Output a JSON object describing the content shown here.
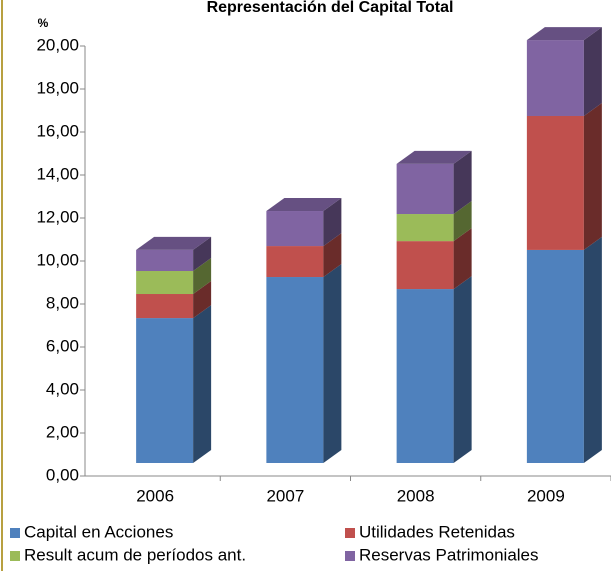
{
  "chart_data": {
    "type": "bar3d_stacked",
    "title": "Representación del Capital Total",
    "y_label": "%",
    "categories": [
      "2006",
      "2007",
      "2008",
      "2009"
    ],
    "series": [
      {
        "name": "Capital en Acciones",
        "color": "#4f81bd",
        "values": [
          6.74,
          8.65,
          8.09,
          9.91
        ]
      },
      {
        "name": "Utilidades Retenidas",
        "color": "#c0504d",
        "values": [
          1.12,
          1.44,
          2.23,
          6.23
        ]
      },
      {
        "name": "Result acum de períodos ant.",
        "color": "#9bbb59",
        "values": [
          1.07,
          0,
          1.26,
          0
        ]
      },
      {
        "name": "Reservas Patrimoniales",
        "color": "#8064a2",
        "values": [
          0.98,
          1.63,
          2.33,
          3.53
        ]
      }
    ],
    "ylim": [
      0,
      20
    ],
    "yticks": [
      {
        "value": 0,
        "label": "0,00"
      },
      {
        "value": 2,
        "label": "2,00"
      },
      {
        "value": 4,
        "label": "4,00"
      },
      {
        "value": 6,
        "label": "6,00"
      },
      {
        "value": 8,
        "label": "8,00"
      },
      {
        "value": 10,
        "label": "10,00"
      },
      {
        "value": 12,
        "label": "12,00"
      },
      {
        "value": 14,
        "label": "14,00"
      },
      {
        "value": 16,
        "label": "16,00"
      },
      {
        "value": 18,
        "label": "18,00"
      },
      {
        "value": 20,
        "label": "20,00"
      }
    ]
  }
}
